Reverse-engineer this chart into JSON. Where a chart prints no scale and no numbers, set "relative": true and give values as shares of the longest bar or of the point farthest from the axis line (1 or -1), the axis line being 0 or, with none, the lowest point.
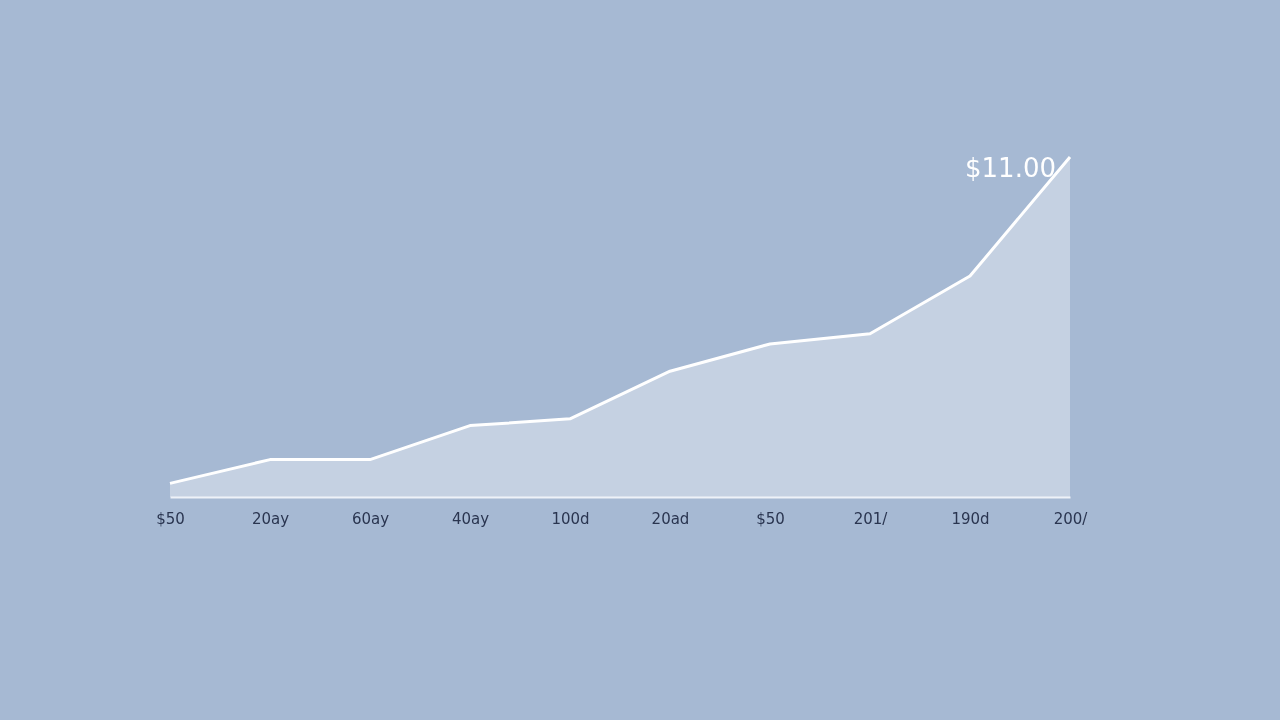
{
  "chart_data": {
    "type": "area",
    "relative": true,
    "categories": [
      "$50",
      "20ay",
      "60ay",
      "40ay",
      "100d",
      "20ad",
      "$50",
      "201/",
      "190d",
      "200/"
    ],
    "series": [
      {
        "color": "#ffffff",
        "values": [
          0.04,
          0.11,
          0.11,
          0.21,
          0.23,
          0.37,
          0.45,
          0.48,
          0.65,
          1.0
        ]
      }
    ],
    "annotations": [
      {
        "text": "$11.00",
        "x": "200/",
        "y": 1.0
      }
    ],
    "grid": false
  }
}
